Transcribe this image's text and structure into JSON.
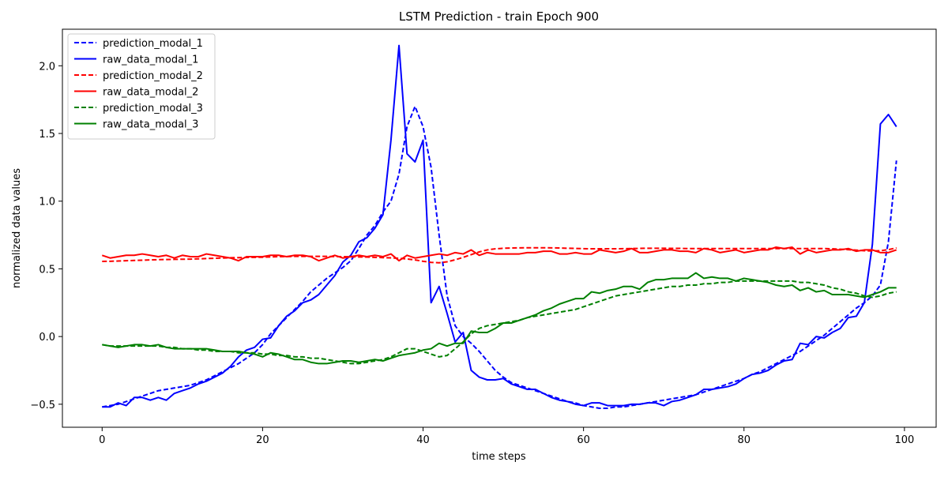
{
  "chart_data": {
    "type": "line",
    "title": "LSTM Prediction - train Epoch 900",
    "xlabel": "time steps",
    "ylabel": "normalized data values",
    "xlim": [
      -4.95,
      103.95
    ],
    "ylim": [
      -0.67,
      2.27
    ],
    "xticks": [
      0,
      20,
      40,
      60,
      80,
      100
    ],
    "xtick_labels": [
      "0",
      "20",
      "40",
      "60",
      "80",
      "100"
    ],
    "yticks": [
      -0.5,
      0.0,
      0.5,
      1.0,
      1.5,
      2.0
    ],
    "ytick_labels": [
      "−0.5",
      "0.0",
      "0.5",
      "1.0",
      "1.5",
      "2.0"
    ],
    "grid": false,
    "legend_position": "top-left",
    "x": [
      0,
      1,
      2,
      3,
      4,
      5,
      6,
      7,
      8,
      9,
      10,
      11,
      12,
      13,
      14,
      15,
      16,
      17,
      18,
      19,
      20,
      21,
      22,
      23,
      24,
      25,
      26,
      27,
      28,
      29,
      30,
      31,
      32,
      33,
      34,
      35,
      36,
      37,
      38,
      39,
      40,
      41,
      42,
      43,
      44,
      45,
      46,
      47,
      48,
      49,
      50,
      51,
      52,
      53,
      54,
      55,
      56,
      57,
      58,
      59,
      60,
      61,
      62,
      63,
      64,
      65,
      66,
      67,
      68,
      69,
      70,
      71,
      72,
      73,
      74,
      75,
      76,
      77,
      78,
      79,
      80,
      81,
      82,
      83,
      84,
      85,
      86,
      87,
      88,
      89,
      90,
      91,
      92,
      93,
      94,
      95,
      96,
      97,
      98,
      99
    ],
    "series": [
      {
        "name": "prediction_modal_1",
        "color": "#0000ff",
        "style": "dashed",
        "values": [
          -0.52,
          -0.51,
          -0.5,
          -0.48,
          -0.46,
          -0.44,
          -0.42,
          -0.4,
          -0.39,
          -0.38,
          -0.37,
          -0.36,
          -0.34,
          -0.32,
          -0.29,
          -0.26,
          -0.23,
          -0.2,
          -0.16,
          -0.12,
          -0.06,
          0.02,
          0.08,
          0.14,
          0.2,
          0.26,
          0.33,
          0.38,
          0.43,
          0.47,
          0.51,
          0.56,
          0.65,
          0.75,
          0.82,
          0.92,
          1.0,
          1.2,
          1.55,
          1.7,
          1.55,
          1.25,
          0.75,
          0.3,
          0.08,
          0.0,
          -0.05,
          -0.11,
          -0.18,
          -0.25,
          -0.3,
          -0.34,
          -0.36,
          -0.38,
          -0.4,
          -0.42,
          -0.44,
          -0.46,
          -0.48,
          -0.49,
          -0.51,
          -0.52,
          -0.53,
          -0.53,
          -0.52,
          -0.52,
          -0.51,
          -0.5,
          -0.49,
          -0.48,
          -0.47,
          -0.46,
          -0.45,
          -0.44,
          -0.43,
          -0.41,
          -0.39,
          -0.37,
          -0.35,
          -0.33,
          -0.31,
          -0.28,
          -0.26,
          -0.23,
          -0.2,
          -0.17,
          -0.14,
          -0.11,
          -0.07,
          -0.03,
          0.01,
          0.06,
          0.11,
          0.16,
          0.21,
          0.25,
          0.3,
          0.38,
          0.7,
          1.3
        ]
      },
      {
        "name": "raw_data_modal_1",
        "color": "#0000ff",
        "style": "solid",
        "values": [
          -0.52,
          -0.52,
          -0.49,
          -0.51,
          -0.45,
          -0.45,
          -0.47,
          -0.45,
          -0.47,
          -0.42,
          -0.4,
          -0.38,
          -0.35,
          -0.33,
          -0.3,
          -0.27,
          -0.22,
          -0.15,
          -0.1,
          -0.08,
          -0.02,
          -0.01,
          0.08,
          0.15,
          0.19,
          0.25,
          0.27,
          0.31,
          0.38,
          0.45,
          0.55,
          0.6,
          0.7,
          0.73,
          0.8,
          0.9,
          1.45,
          2.15,
          1.35,
          1.29,
          1.45,
          0.25,
          0.37,
          0.17,
          -0.04,
          0.03,
          -0.25,
          -0.3,
          -0.32,
          -0.32,
          -0.31,
          -0.35,
          -0.37,
          -0.39,
          -0.39,
          -0.42,
          -0.45,
          -0.47,
          -0.48,
          -0.5,
          -0.51,
          -0.49,
          -0.49,
          -0.51,
          -0.51,
          -0.51,
          -0.5,
          -0.5,
          -0.49,
          -0.49,
          -0.51,
          -0.48,
          -0.47,
          -0.45,
          -0.43,
          -0.39,
          -0.39,
          -0.38,
          -0.37,
          -0.35,
          -0.31,
          -0.28,
          -0.27,
          -0.25,
          -0.21,
          -0.18,
          -0.17,
          -0.05,
          -0.06,
          0.0,
          -0.01,
          0.03,
          0.06,
          0.14,
          0.15,
          0.25,
          0.68,
          1.57,
          1.64,
          1.55
        ]
      },
      {
        "name": "prediction_modal_2",
        "color": "#ff0000",
        "style": "dashed",
        "values": [
          0.555,
          0.556,
          0.558,
          0.56,
          0.562,
          0.564,
          0.566,
          0.568,
          0.569,
          0.57,
          0.571,
          0.572,
          0.574,
          0.576,
          0.578,
          0.58,
          0.582,
          0.583,
          0.584,
          0.585,
          0.586,
          0.588,
          0.59,
          0.591,
          0.592,
          0.592,
          0.592,
          0.592,
          0.592,
          0.591,
          0.59,
          0.589,
          0.588,
          0.587,
          0.585,
          0.583,
          0.581,
          0.578,
          0.573,
          0.566,
          0.556,
          0.548,
          0.545,
          0.552,
          0.567,
          0.585,
          0.605,
          0.625,
          0.64,
          0.648,
          0.652,
          0.654,
          0.655,
          0.656,
          0.656,
          0.656,
          0.655,
          0.654,
          0.652,
          0.651,
          0.649,
          0.648,
          0.648,
          0.648,
          0.648,
          0.649,
          0.65,
          0.651,
          0.652,
          0.652,
          0.652,
          0.651,
          0.651,
          0.65,
          0.65,
          0.65,
          0.65,
          0.65,
          0.65,
          0.65,
          0.65,
          0.65,
          0.65,
          0.65,
          0.65,
          0.65,
          0.65,
          0.65,
          0.65,
          0.65,
          0.65,
          0.648,
          0.645,
          0.642,
          0.638,
          0.634,
          0.632,
          0.634,
          0.642,
          0.655
        ]
      },
      {
        "name": "raw_data_modal_2",
        "color": "#ff0000",
        "style": "solid",
        "values": [
          0.6,
          0.58,
          0.59,
          0.6,
          0.6,
          0.61,
          0.6,
          0.59,
          0.6,
          0.58,
          0.6,
          0.59,
          0.59,
          0.61,
          0.6,
          0.59,
          0.58,
          0.56,
          0.59,
          0.59,
          0.59,
          0.6,
          0.6,
          0.59,
          0.6,
          0.6,
          0.59,
          0.56,
          0.58,
          0.6,
          0.58,
          0.59,
          0.6,
          0.59,
          0.6,
          0.59,
          0.61,
          0.56,
          0.6,
          0.58,
          0.59,
          0.6,
          0.61,
          0.6,
          0.62,
          0.61,
          0.64,
          0.6,
          0.62,
          0.61,
          0.61,
          0.61,
          0.61,
          0.62,
          0.62,
          0.63,
          0.63,
          0.61,
          0.61,
          0.62,
          0.61,
          0.61,
          0.64,
          0.63,
          0.62,
          0.63,
          0.65,
          0.62,
          0.62,
          0.63,
          0.64,
          0.64,
          0.63,
          0.63,
          0.62,
          0.65,
          0.64,
          0.62,
          0.63,
          0.64,
          0.62,
          0.63,
          0.64,
          0.64,
          0.66,
          0.65,
          0.66,
          0.61,
          0.64,
          0.62,
          0.63,
          0.64,
          0.64,
          0.65,
          0.63,
          0.64,
          0.64,
          0.62,
          0.62,
          0.64
        ]
      },
      {
        "name": "prediction_modal_3",
        "color": "#008000",
        "style": "dashed",
        "values": [
          -0.06,
          -0.07,
          -0.07,
          -0.07,
          -0.07,
          -0.07,
          -0.07,
          -0.07,
          -0.08,
          -0.08,
          -0.09,
          -0.09,
          -0.1,
          -0.1,
          -0.11,
          -0.11,
          -0.11,
          -0.12,
          -0.12,
          -0.12,
          -0.13,
          -0.13,
          -0.14,
          -0.14,
          -0.15,
          -0.15,
          -0.16,
          -0.16,
          -0.17,
          -0.18,
          -0.19,
          -0.2,
          -0.2,
          -0.19,
          -0.18,
          -0.17,
          -0.15,
          -0.12,
          -0.09,
          -0.09,
          -0.11,
          -0.13,
          -0.15,
          -0.14,
          -0.09,
          -0.04,
          0.02,
          0.06,
          0.08,
          0.09,
          0.1,
          0.11,
          0.12,
          0.14,
          0.15,
          0.16,
          0.17,
          0.18,
          0.19,
          0.2,
          0.22,
          0.24,
          0.26,
          0.28,
          0.3,
          0.31,
          0.32,
          0.33,
          0.34,
          0.35,
          0.36,
          0.37,
          0.37,
          0.38,
          0.38,
          0.39,
          0.39,
          0.4,
          0.4,
          0.41,
          0.41,
          0.41,
          0.41,
          0.41,
          0.41,
          0.41,
          0.41,
          0.4,
          0.4,
          0.39,
          0.38,
          0.36,
          0.35,
          0.33,
          0.32,
          0.3,
          0.29,
          0.3,
          0.32,
          0.33
        ]
      },
      {
        "name": "raw_data_modal_3",
        "color": "#008000",
        "style": "solid",
        "values": [
          -0.06,
          -0.07,
          -0.08,
          -0.07,
          -0.06,
          -0.06,
          -0.07,
          -0.06,
          -0.08,
          -0.09,
          -0.09,
          -0.09,
          -0.09,
          -0.09,
          -0.1,
          -0.11,
          -0.11,
          -0.11,
          -0.12,
          -0.13,
          -0.15,
          -0.12,
          -0.13,
          -0.15,
          -0.17,
          -0.17,
          -0.19,
          -0.2,
          -0.2,
          -0.19,
          -0.18,
          -0.18,
          -0.19,
          -0.18,
          -0.17,
          -0.18,
          -0.16,
          -0.14,
          -0.13,
          -0.12,
          -0.1,
          -0.09,
          -0.05,
          -0.07,
          -0.05,
          -0.05,
          0.04,
          0.03,
          0.03,
          0.06,
          0.1,
          0.1,
          0.12,
          0.14,
          0.16,
          0.19,
          0.21,
          0.24,
          0.26,
          0.28,
          0.28,
          0.33,
          0.32,
          0.34,
          0.35,
          0.37,
          0.37,
          0.35,
          0.4,
          0.42,
          0.42,
          0.43,
          0.43,
          0.43,
          0.47,
          0.43,
          0.44,
          0.43,
          0.43,
          0.41,
          0.43,
          0.42,
          0.41,
          0.4,
          0.38,
          0.37,
          0.38,
          0.34,
          0.36,
          0.33,
          0.34,
          0.31,
          0.31,
          0.31,
          0.3,
          0.29,
          0.31,
          0.33,
          0.36,
          0.36
        ]
      }
    ]
  }
}
